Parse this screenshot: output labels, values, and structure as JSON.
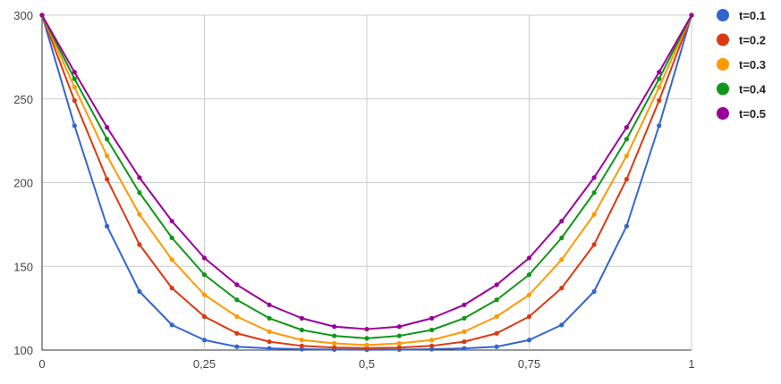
{
  "chart_data": {
    "type": "line",
    "title": "",
    "xlabel": "",
    "ylabel": "",
    "xlim": [
      0,
      1
    ],
    "ylim": [
      100,
      300
    ],
    "x_ticks": [
      {
        "value": 0,
        "label": "0"
      },
      {
        "value": 0.25,
        "label": "0,25"
      },
      {
        "value": 0.5,
        "label": "0,5"
      },
      {
        "value": 0.75,
        "label": "0,75"
      },
      {
        "value": 1,
        "label": "1"
      }
    ],
    "y_ticks": [
      {
        "value": 100,
        "label": "100"
      },
      {
        "value": 150,
        "label": "150"
      },
      {
        "value": 200,
        "label": "200"
      },
      {
        "value": 250,
        "label": "250"
      },
      {
        "value": 300,
        "label": "300"
      }
    ],
    "grid": true,
    "legend_position": "right",
    "x": [
      0,
      0.05,
      0.1,
      0.15,
      0.2,
      0.25,
      0.3,
      0.35,
      0.4,
      0.45,
      0.5,
      0.55,
      0.6,
      0.65,
      0.7,
      0.75,
      0.8,
      0.85,
      0.9,
      0.95,
      1
    ],
    "series": [
      {
        "name": "t=0.1",
        "color": "#3366cc",
        "values": [
          300,
          234,
          174,
          135,
          115,
          106,
          102,
          101,
          100.5,
          100.3,
          100.2,
          100.3,
          100.5,
          101,
          102,
          106,
          115,
          135,
          174,
          234,
          300
        ]
      },
      {
        "name": "t=0.2",
        "color": "#dc3912",
        "values": [
          300,
          249,
          202,
          163,
          137,
          120,
          110,
          105,
          102.5,
          101.5,
          101.2,
          101.5,
          102.5,
          105,
          110,
          120,
          137,
          163,
          202,
          249,
          300
        ]
      },
      {
        "name": "t=0.3",
        "color": "#ff9900",
        "values": [
          300,
          257,
          216,
          181,
          154,
          133,
          120,
          111,
          106,
          104,
          103,
          104,
          106,
          111,
          120,
          133,
          154,
          181,
          216,
          257,
          300
        ]
      },
      {
        "name": "t=0.4",
        "color": "#109618",
        "values": [
          300,
          262,
          226,
          194,
          167,
          145,
          130,
          119,
          112,
          108.5,
          107,
          108.5,
          112,
          119,
          130,
          145,
          167,
          194,
          226,
          262,
          300
        ]
      },
      {
        "name": "t=0.5",
        "color": "#990099",
        "values": [
          300,
          266,
          233,
          203,
          177,
          155,
          139,
          127,
          119,
          114,
          112.5,
          114,
          119,
          127,
          139,
          155,
          177,
          203,
          233,
          266,
          300
        ]
      }
    ]
  }
}
